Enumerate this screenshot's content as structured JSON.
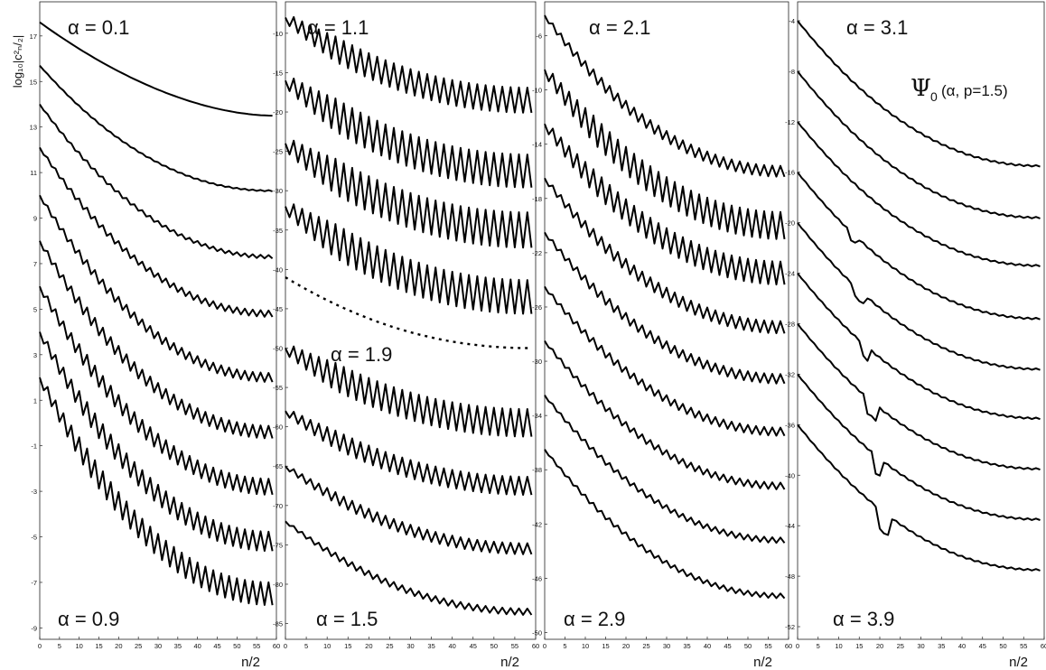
{
  "figure": {
    "ylabel": "log₁₀|c²ₙ/₂|",
    "annotation": {
      "psi": "Ψ",
      "sub": "0",
      "args": "(α, p=1.5)"
    }
  },
  "chart_data": [
    {
      "type": "line",
      "xlabel": "",
      "ylabel": "log₁₀|c²ₙ/₂|",
      "xlim": [
        0,
        60
      ],
      "ylim": [
        -9.5,
        18.5
      ],
      "xticks": [
        0,
        5,
        10,
        15,
        20,
        25,
        30,
        35,
        40,
        45,
        50,
        55,
        60
      ],
      "yticks": [
        17,
        15,
        13,
        11,
        9,
        7,
        5,
        3,
        1,
        -1,
        -3,
        -5,
        -7,
        -9
      ],
      "labels": [
        {
          "text": "α = 0.1",
          "pos": "top-left"
        },
        {
          "text": "α = 0.9",
          "pos": "bottom-left"
        }
      ],
      "series": [
        {
          "alpha": 0.1,
          "start": 17.6,
          "end": 13.5,
          "zigzag": 0.0
        },
        {
          "alpha": 0.2,
          "start": 15.7,
          "end": 10.2,
          "zigzag": 0.05
        },
        {
          "alpha": 0.3,
          "start": 14.0,
          "end": 7.3,
          "zigzag": 0.15
        },
        {
          "alpha": 0.4,
          "start": 12.1,
          "end": 4.8,
          "zigzag": 0.28
        },
        {
          "alpha": 0.5,
          "start": 10.0,
          "end": 2.0,
          "zigzag": 0.4
        },
        {
          "alpha": 0.6,
          "start": 8.0,
          "end": -0.4,
          "zigzag": 0.55
        },
        {
          "alpha": 0.7,
          "start": 6.0,
          "end": -2.8,
          "zigzag": 0.7
        },
        {
          "alpha": 0.8,
          "start": 4.0,
          "end": -5.2,
          "zigzag": 0.85
        },
        {
          "alpha": 0.9,
          "start": 2.0,
          "end": -7.5,
          "zigzag": 1.0
        }
      ]
    },
    {
      "type": "line",
      "xlabel": "",
      "ylabel": "",
      "xlim": [
        0,
        60
      ],
      "ylim": [
        -87,
        -6
      ],
      "xticks": [
        0,
        5,
        10,
        15,
        20,
        25,
        30,
        35,
        40,
        45,
        50,
        55,
        60
      ],
      "yticks": [
        -10,
        -15,
        -20,
        -25,
        -30,
        -35,
        -40,
        -45,
        -50,
        -55,
        -60,
        -65,
        -70,
        -75,
        -80,
        -85
      ],
      "labels": [
        {
          "text": "α = 1.1",
          "pos": "top-left"
        },
        {
          "text": "α = 1.5",
          "pos": "middle"
        },
        {
          "text": "α = 1.9",
          "pos": "bottom-left"
        }
      ],
      "series": [
        {
          "alpha": 1.1,
          "start": -8.0,
          "end": -18.5,
          "zigzag": 3.2
        },
        {
          "alpha": 1.2,
          "start": -16.0,
          "end": -27.5,
          "zigzag": 4.2
        },
        {
          "alpha": 1.3,
          "start": -24.0,
          "end": -35.0,
          "zigzag": 4.5
        },
        {
          "alpha": 1.4,
          "start": -32.0,
          "end": -43.5,
          "zigzag": 4.3
        },
        {
          "alpha": 1.5,
          "start": -41.0,
          "end": -50.0,
          "zigzag": 0,
          "dashed": true
        },
        {
          "alpha": 1.6,
          "start": -50.0,
          "end": -59.5,
          "zigzag": 3.5
        },
        {
          "alpha": 1.7,
          "start": -58.0,
          "end": -67.5,
          "zigzag": 2.3
        },
        {
          "alpha": 1.8,
          "start": -65.0,
          "end": -75.5,
          "zigzag": 1.4
        },
        {
          "alpha": 1.9,
          "start": -72.0,
          "end": -83.5,
          "zigzag": 0.8
        }
      ]
    },
    {
      "type": "line",
      "xlabel": "",
      "ylabel": "",
      "xlim": [
        0,
        60
      ],
      "ylim": [
        -50.5,
        -3.5
      ],
      "xticks": [
        0,
        5,
        10,
        15,
        20,
        25,
        30,
        35,
        40,
        45,
        50,
        55,
        60
      ],
      "yticks": [
        -6,
        -10,
        -14,
        -18,
        -22,
        -26,
        -30,
        -34,
        -38,
        -42,
        -46,
        -50
      ],
      "labels": [
        {
          "text": "α = 2.1",
          "pos": "top-left"
        },
        {
          "text": "α = 2.9",
          "pos": "bottom-left"
        }
      ],
      "series": [
        {
          "alpha": 2.1,
          "start": -4.5,
          "end": -16.0,
          "zigzag": 0.8
        },
        {
          "alpha": 2.2,
          "start": -8.5,
          "end": -20.0,
          "zigzag": 2.0
        },
        {
          "alpha": 2.3,
          "start": -12.5,
          "end": -23.5,
          "zigzag": 1.7
        },
        {
          "alpha": 2.4,
          "start": -16.5,
          "end": -27.5,
          "zigzag": 0.9
        },
        {
          "alpha": 2.5,
          "start": -20.5,
          "end": -31.3,
          "zigzag": 0.7
        },
        {
          "alpha": 2.6,
          "start": -24.5,
          "end": -35.2,
          "zigzag": 0.6
        },
        {
          "alpha": 2.7,
          "start": -28.5,
          "end": -39.2,
          "zigzag": 0.5
        },
        {
          "alpha": 2.8,
          "start": -32.5,
          "end": -43.2,
          "zigzag": 0.4
        },
        {
          "alpha": 2.9,
          "start": -36.5,
          "end": -47.3,
          "zigzag": 0.35
        }
      ]
    },
    {
      "type": "line",
      "xlabel": "n/2",
      "ylabel": "",
      "xlim": [
        0,
        60
      ],
      "ylim": [
        -53,
        -2.5
      ],
      "xticks": [
        0,
        5,
        10,
        15,
        20,
        25,
        30,
        35,
        40,
        45,
        50,
        55,
        60
      ],
      "yticks": [
        -4,
        -8,
        -12,
        -16,
        -20,
        -24,
        -28,
        -32,
        -36,
        -40,
        -44,
        -48,
        -52
      ],
      "labels": [
        {
          "text": "α = 3.1",
          "pos": "top-left"
        },
        {
          "text": "α = 3.9",
          "pos": "bottom-left"
        }
      ],
      "series": [
        {
          "alpha": 3.1,
          "start": -4.0,
          "end": -15.5,
          "zigzag": 0.12
        },
        {
          "alpha": 3.2,
          "start": -8.0,
          "end": -19.6,
          "zigzag": 0.12
        },
        {
          "alpha": 3.3,
          "start": -12.0,
          "end": -23.4,
          "zigzag": 0.12
        },
        {
          "alpha": 3.4,
          "start": -16.0,
          "end": -27.6,
          "zigzag": 0.12
        },
        {
          "alpha": 3.5,
          "start": -20.0,
          "end": -31.6,
          "zigzag": 0.12
        },
        {
          "alpha": 3.6,
          "start": -24.0,
          "end": -35.5,
          "zigzag": 0.12
        },
        {
          "alpha": 3.7,
          "start": -28.0,
          "end": -39.5,
          "zigzag": 0.12
        },
        {
          "alpha": 3.8,
          "start": -32.0,
          "end": -43.5,
          "zigzag": 0.12
        },
        {
          "alpha": 3.9,
          "start": -36.0,
          "end": -47.5,
          "zigzag": 0.12
        }
      ]
    }
  ]
}
